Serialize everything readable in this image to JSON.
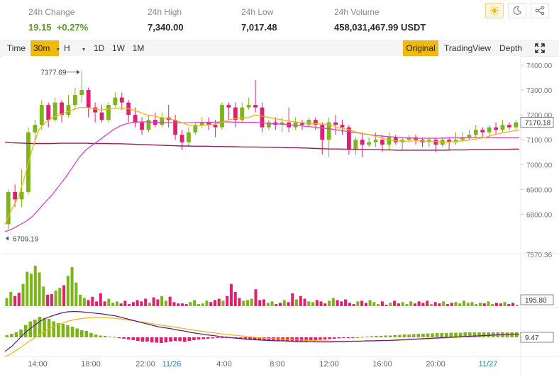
{
  "stats": [
    {
      "label": "24h Change",
      "value": "19.15  +0.27%",
      "color": "#5a9b2c"
    },
    {
      "label": "24h High",
      "value": "7,340.00"
    },
    {
      "label": "24h Low",
      "value": "7,017.48"
    },
    {
      "label": "24h Volume",
      "value": "458,031,467.99 USDT"
    }
  ],
  "toolbar": {
    "time_label": "Time",
    "interval_label": "30m",
    "hour_label": "H",
    "ranges": [
      "1D",
      "1W",
      "1M"
    ],
    "views": [
      "Original",
      "TradingView",
      "Depth"
    ],
    "active_view": "Original"
  },
  "icons": [
    "sun-icon",
    "moon-icon",
    "share-icon",
    "fullscreen-icon"
  ],
  "price_axis": {
    "ticks": [
      "7400.00",
      "7300.00",
      "7200.00",
      "7100.00",
      "7000.00",
      "6900.00",
      "6800.00"
    ],
    "current": "7170.18"
  },
  "annotations": {
    "high": "7377.69",
    "low": "6709.19"
  },
  "volume_axis": {
    "top": "7570.36",
    "current": "195.80"
  },
  "macd_axis": {
    "current": "9.47"
  },
  "time_axis": [
    "14:00",
    "18:00",
    "22:00",
    "11/26",
    "4:00",
    "8:00",
    "12:00",
    "16:00",
    "20:00",
    "11/27"
  ],
  "colors": {
    "up": "#7cb518",
    "down": "#e0206f",
    "ma_fast": "#f0b90b",
    "ma_slow": "#e040d0",
    "ma_long": "#9a1b5c",
    "accent": "#f0b90b"
  },
  "chart_data": {
    "type": "candlestick",
    "candles": [
      [
        6760,
        6890,
        6740,
        6900
      ],
      [
        6890,
        6860,
        6830,
        6920
      ],
      [
        6860,
        6890,
        6830,
        6980
      ],
      [
        6890,
        7130,
        6880,
        7150
      ],
      [
        7130,
        7160,
        7080,
        7180
      ],
      [
        7160,
        7240,
        7140,
        7260
      ],
      [
        7240,
        7180,
        7150,
        7250
      ],
      [
        7180,
        7250,
        7170,
        7270
      ],
      [
        7250,
        7200,
        7170,
        7260
      ],
      [
        7200,
        7240,
        7190,
        7280
      ],
      [
        7240,
        7280,
        7220,
        7310
      ],
      [
        7280,
        7300,
        7250,
        7378
      ],
      [
        7300,
        7230,
        7190,
        7310
      ],
      [
        7230,
        7210,
        7170,
        7250
      ],
      [
        7210,
        7180,
        7170,
        7240
      ],
      [
        7180,
        7240,
        7170,
        7250
      ],
      [
        7240,
        7270,
        7230,
        7290
      ],
      [
        7270,
        7250,
        7220,
        7290
      ],
      [
        7250,
        7200,
        7170,
        7260
      ],
      [
        7200,
        7170,
        7150,
        7230
      ],
      [
        7170,
        7140,
        7120,
        7190
      ],
      [
        7140,
        7180,
        7130,
        7200
      ],
      [
        7180,
        7160,
        7150,
        7210
      ],
      [
        7160,
        7190,
        7150,
        7210
      ],
      [
        7190,
        7180,
        7150,
        7240
      ],
      [
        7180,
        7120,
        7100,
        7200
      ],
      [
        7120,
        7090,
        7060,
        7140
      ],
      [
        7090,
        7130,
        7070,
        7150
      ],
      [
        7130,
        7160,
        7120,
        7170
      ],
      [
        7160,
        7170,
        7150,
        7190
      ],
      [
        7170,
        7160,
        7140,
        7190
      ],
      [
        7160,
        7150,
        7110,
        7180
      ],
      [
        7150,
        7240,
        7140,
        7250
      ],
      [
        7240,
        7230,
        7180,
        7250
      ],
      [
        7230,
        7180,
        7150,
        7250
      ],
      [
        7180,
        7230,
        7170,
        7250
      ],
      [
        7230,
        7240,
        7220,
        7270
      ],
      [
        7240,
        7230,
        7210,
        7340
      ],
      [
        7230,
        7150,
        7130,
        7250
      ],
      [
        7150,
        7170,
        7140,
        7180
      ],
      [
        7170,
        7160,
        7140,
        7190
      ],
      [
        7160,
        7170,
        7130,
        7190
      ],
      [
        7170,
        7150,
        7130,
        7230
      ],
      [
        7150,
        7170,
        7140,
        7190
      ],
      [
        7170,
        7160,
        7140,
        7180
      ],
      [
        7160,
        7180,
        7150,
        7190
      ],
      [
        7180,
        7160,
        7140,
        7190
      ],
      [
        7160,
        7100,
        7040,
        7170
      ],
      [
        7100,
        7170,
        7030,
        7190
      ],
      [
        7170,
        7160,
        7120,
        7200
      ],
      [
        7160,
        7150,
        7120,
        7180
      ],
      [
        7150,
        7060,
        7040,
        7160
      ],
      [
        7060,
        7100,
        7040,
        7110
      ],
      [
        7100,
        7080,
        7030,
        7130
      ],
      [
        7080,
        7090,
        7070,
        7110
      ],
      [
        7090,
        7100,
        7070,
        7130
      ],
      [
        7100,
        7080,
        7050,
        7120
      ],
      [
        7080,
        7110,
        7060,
        7130
      ],
      [
        7110,
        7090,
        7080,
        7120
      ],
      [
        7090,
        7100,
        7060,
        7110
      ],
      [
        7100,
        7110,
        7090,
        7120
      ],
      [
        7110,
        7100,
        7080,
        7120
      ],
      [
        7100,
        7090,
        7070,
        7110
      ],
      [
        7090,
        7100,
        7070,
        7110
      ],
      [
        7100,
        7080,
        7050,
        7110
      ],
      [
        7080,
        7100,
        7070,
        7110
      ],
      [
        7100,
        7090,
        7060,
        7110
      ],
      [
        7090,
        7100,
        7080,
        7130
      ],
      [
        7100,
        7110,
        7090,
        7130
      ],
      [
        7110,
        7120,
        7100,
        7140
      ],
      [
        7120,
        7140,
        7110,
        7160
      ],
      [
        7140,
        7130,
        7110,
        7150
      ],
      [
        7130,
        7150,
        7110,
        7160
      ],
      [
        7150,
        7140,
        7120,
        7170
      ],
      [
        7140,
        7160,
        7130,
        7180
      ],
      [
        7160,
        7150,
        7140,
        7170
      ],
      [
        7150,
        7170,
        7140,
        7180
      ]
    ],
    "ma_fast": [
      [
        6760,
        6820,
        6870,
        6960,
        7060,
        7140,
        7170,
        7190,
        7200,
        7210
      ],
      [
        7220,
        7230,
        7230,
        7225,
        7220,
        7222,
        7225,
        7228,
        7226,
        7220
      ],
      [
        7210,
        7200,
        7195,
        7190,
        7186,
        7180,
        7170,
        7160,
        7155,
        7158
      ],
      [
        7160,
        7162,
        7170,
        7180,
        7185,
        7188,
        7190,
        7200,
        7195,
        7190
      ],
      [
        7185,
        7180,
        7175,
        7172,
        7168,
        7166,
        7164,
        7164,
        7160,
        7150
      ],
      [
        7145,
        7140,
        7130,
        7125,
        7120,
        7112,
        7105,
        7098,
        7095,
        7094
      ],
      [
        7095,
        7096,
        7094,
        7093,
        7092,
        7090,
        7092,
        7094,
        7097,
        7100
      ],
      [
        7105,
        7110,
        7118,
        7125,
        7130,
        7135,
        7138
      ]
    ],
    "ma_slow": [
      [
        6730,
        6740,
        6755,
        6770,
        6790,
        6820,
        6850,
        6880,
        6915,
        6950
      ],
      [
        6990,
        7030,
        7060,
        7080,
        7100,
        7120,
        7140,
        7155,
        7165,
        7170
      ],
      [
        7172,
        7172,
        7170,
        7170,
        7169,
        7168,
        7168,
        7168,
        7169,
        7170
      ],
      [
        7170,
        7170,
        7172,
        7172,
        7171,
        7170,
        7170,
        7170,
        7168,
        7166
      ],
      [
        7164,
        7163,
        7160,
        7158,
        7155,
        7153,
        7150,
        7147,
        7144,
        7140
      ],
      [
        7136,
        7132,
        7128,
        7124,
        7120,
        7117,
        7114,
        7112,
        7110,
        7108
      ],
      [
        7107,
        7106,
        7106,
        7106,
        7106,
        7107,
        7108,
        7108,
        7109,
        7109
      ],
      [
        7109,
        7109,
        7109,
        7108,
        7108,
        7108,
        7108
      ]
    ],
    "ma_long": [
      [
        7090,
        7088,
        7087,
        7086,
        7085,
        7085,
        7085,
        7085,
        7086,
        7086
      ],
      [
        7086,
        7086,
        7086,
        7085,
        7085,
        7085,
        7084,
        7084,
        7083,
        7082
      ],
      [
        7081,
        7080,
        7079,
        7078,
        7077,
        7076,
        7075,
        7075,
        7074,
        7074
      ],
      [
        7074,
        7073,
        7073,
        7072,
        7072,
        7071,
        7071,
        7071,
        7070,
        7070
      ],
      [
        7069,
        7069,
        7068,
        7068,
        7067,
        7066,
        7065,
        7064,
        7063,
        7063
      ],
      [
        7062,
        7062,
        7061,
        7061,
        7060,
        7060,
        7059,
        7059,
        7058,
        7058
      ],
      [
        7058,
        7058,
        7058,
        7058,
        7058,
        7058,
        7059,
        7059,
        7059,
        7060
      ],
      [
        7060,
        7060,
        7061,
        7061,
        7061,
        7062,
        7062
      ]
    ],
    "volumes": [
      [
        1200,
        2100,
        1500,
        2000,
        3300,
        5100,
        4800,
        6000,
        5000,
        2900,
        1700,
        1800,
        2300,
        2700,
        3100,
        4500,
        5800,
        3500,
        1700,
        1200
      ],
      [
        900,
        1400,
        700,
        1900,
        700,
        1100,
        500,
        700,
        400,
        800,
        300,
        600,
        900,
        700,
        1100,
        500,
        1300,
        1000,
        1500,
        800
      ],
      [
        1400,
        600,
        400,
        400,
        300,
        600,
        900,
        300,
        400,
        800,
        600,
        900,
        1100,
        800,
        1500,
        3300,
        2100,
        1200,
        800,
        900
      ],
      [
        1100,
        2500,
        900,
        1000,
        500,
        700,
        300,
        500,
        900,
        600,
        1900,
        1000,
        1500,
        1100,
        700,
        600,
        900,
        700,
        400,
        800
      ],
      [
        1200,
        900,
        700,
        1000,
        500,
        300,
        700,
        800,
        500,
        900,
        600,
        300,
        700,
        200,
        500,
        800,
        400,
        600,
        300,
        700
      ],
      [
        400,
        700,
        500,
        800,
        300,
        600,
        400,
        700,
        300,
        500,
        600,
        400,
        800,
        500,
        600,
        300,
        500,
        400,
        700,
        300
      ],
      [
        500,
        400,
        600,
        300,
        500,
        200
      ]
    ],
    "macd_hist": [
      [
        6,
        10,
        15,
        22,
        35,
        45,
        50,
        58,
        55,
        52,
        45,
        40,
        38,
        34,
        30,
        25,
        20,
        18,
        12,
        8
      ],
      [
        5,
        4,
        2,
        1,
        -2,
        -4,
        -6,
        -8,
        -10,
        -12,
        -12,
        -14,
        -15,
        -16,
        -14,
        -12,
        -10,
        -11,
        -13,
        -10
      ],
      [
        -8,
        -6,
        -5,
        -4,
        -3,
        -2,
        -1,
        -1,
        -2,
        -3,
        -4,
        -5,
        -6,
        -6,
        -7,
        -8,
        -9,
        -10,
        -10,
        -11
      ],
      [
        -11,
        -12,
        -13,
        -12,
        -11,
        -9,
        -8,
        -7,
        -6,
        -5,
        -4,
        -3,
        -2,
        -2,
        -1,
        0,
        1,
        2,
        3,
        4
      ],
      [
        4,
        5,
        5,
        6,
        7,
        8,
        8,
        9,
        10,
        10,
        11,
        11,
        12,
        12,
        12,
        13,
        13,
        13,
        14,
        14
      ],
      [
        14,
        14,
        14,
        14,
        14,
        14,
        14,
        14,
        14,
        14
      ]
    ],
    "macd_line": [
      [
        -40,
        -25,
        -5,
        15,
        30,
        45,
        55,
        62,
        68,
        72,
        73,
        72,
        70,
        68,
        66,
        63,
        60,
        55,
        50,
        45
      ],
      [
        40,
        35,
        30,
        27,
        24,
        20,
        17,
        13,
        10,
        7,
        5,
        2,
        0,
        -2,
        -4,
        -6,
        -7,
        -8,
        -9,
        -10
      ],
      [
        -10,
        -11,
        -12,
        -12,
        -12,
        -13,
        -13,
        -13,
        -12,
        -12,
        -11,
        -11,
        -10,
        -10,
        -9,
        -9,
        -8,
        -7,
        -6,
        -5
      ],
      [
        -4,
        -3,
        -2,
        -1,
        0,
        1,
        2,
        3,
        4,
        5,
        6,
        7,
        8,
        9,
        9
      ]
    ],
    "signal_line": [
      [
        -55,
        -45,
        -32,
        -18,
        -5,
        8,
        20,
        30,
        38,
        45,
        50,
        53,
        55,
        56,
        56,
        55,
        53,
        51,
        48,
        45
      ],
      [
        42,
        39,
        36,
        33,
        30,
        27,
        24,
        21,
        18,
        15,
        13,
        10,
        8,
        6,
        4,
        2,
        0,
        -2,
        -3,
        -4
      ],
      [
        -5,
        -6,
        -7,
        -8,
        -9,
        -10,
        -10,
        -11,
        -11,
        -11,
        -11,
        -11,
        -10,
        -10,
        -10,
        -9,
        -9,
        -8,
        -7,
        -6
      ],
      [
        -5,
        -4,
        -3,
        -2,
        -1,
        0,
        1,
        2,
        3,
        4,
        5,
        6,
        7,
        8,
        9
      ]
    ]
  }
}
